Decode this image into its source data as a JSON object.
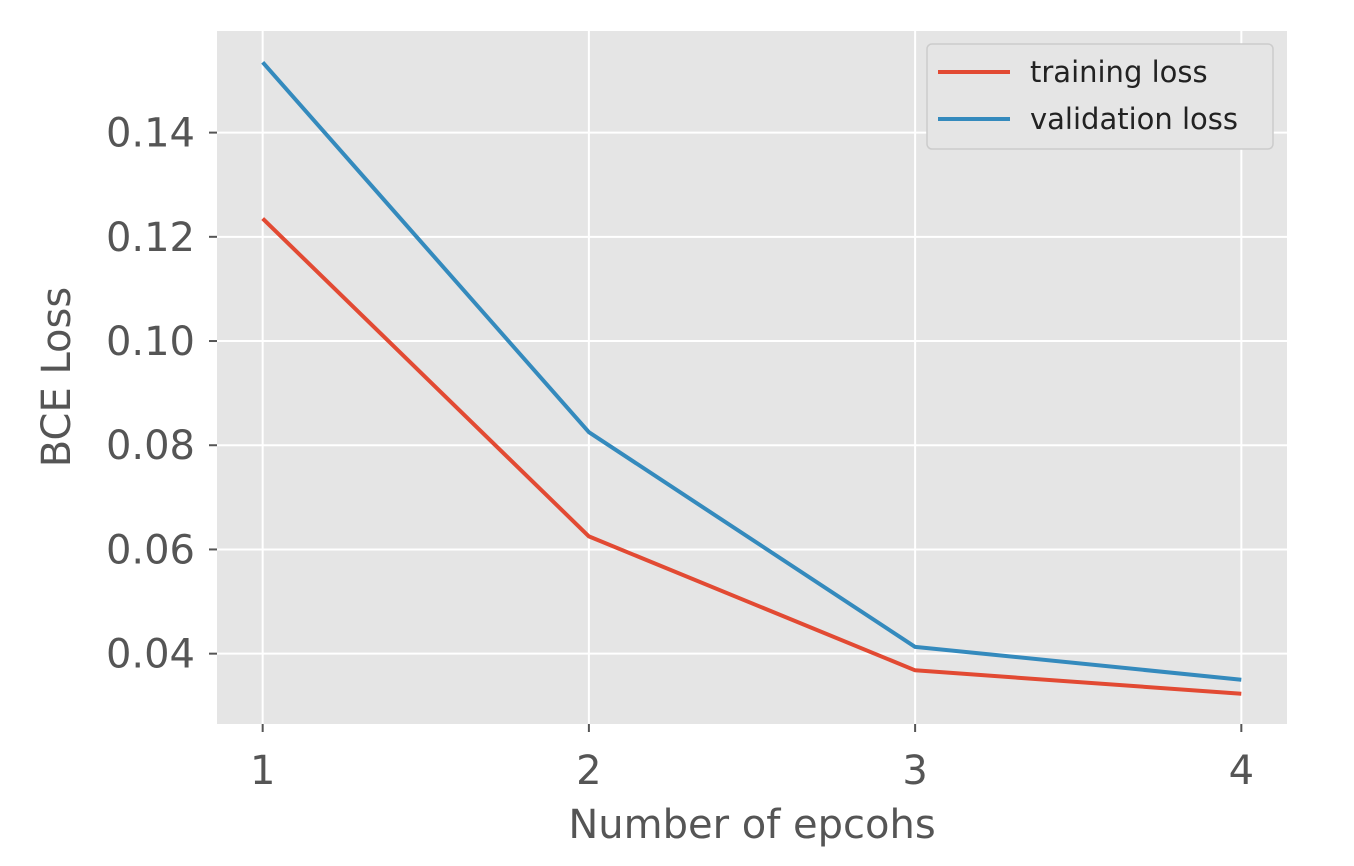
{
  "chart_data": {
    "type": "line",
    "title": "",
    "xlabel": "Number of epcohs",
    "ylabel": "BCE Loss",
    "x": [
      1,
      2,
      3,
      4
    ],
    "x_tick_labels": [
      "1",
      "2",
      "3",
      "4"
    ],
    "y_ticks": [
      0.04,
      0.06,
      0.08,
      0.1,
      0.12,
      0.14
    ],
    "y_tick_labels": [
      "0.04",
      "0.06",
      "0.08",
      "0.10",
      "0.12",
      "0.14"
    ],
    "xlim": [
      0.86,
      4.14
    ],
    "ylim": [
      0.0265,
      0.1595
    ],
    "grid": true,
    "legend_position": "top-right",
    "background_color": "#e5e5e5",
    "grid_color": "#ffffff",
    "series": [
      {
        "name": "training loss",
        "color": "#e24a33",
        "values": [
          0.1235,
          0.0625,
          0.0368,
          0.0323
        ]
      },
      {
        "name": "validation loss",
        "color": "#348abd",
        "values": [
          0.1535,
          0.0825,
          0.0413,
          0.035
        ]
      }
    ]
  }
}
